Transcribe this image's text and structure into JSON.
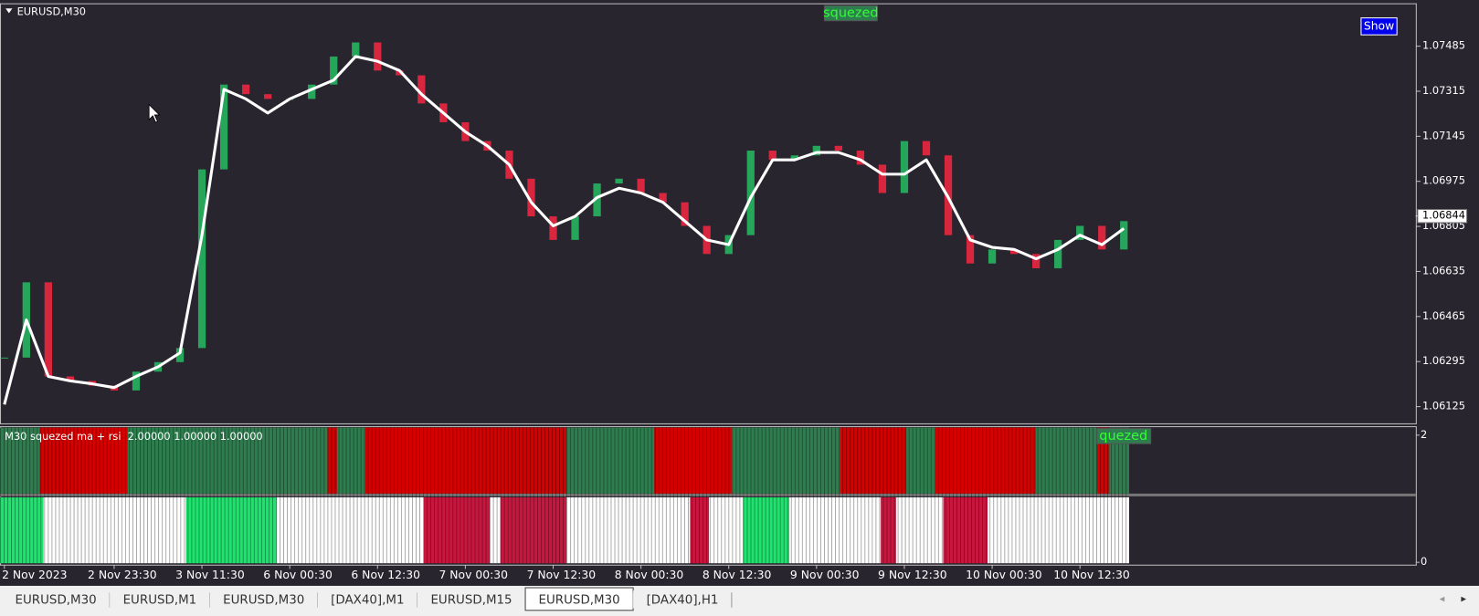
{
  "chart_data": [
    {
      "type": "candlestick",
      "title": "EURUSD,M30",
      "annotation": "squezed",
      "up_color": "#26a65b",
      "down_color": "#d7263d",
      "values": [
        1.0631,
        1.06594,
        1.06239,
        1.06222,
        1.06204,
        1.06186,
        1.06257,
        1.06293,
        1.06346,
        1.0702,
        1.0734,
        1.07304,
        1.07286,
        1.07286,
        1.0734,
        1.07446,
        1.07499,
        1.07393,
        1.07375,
        1.07269,
        1.07198,
        1.07127,
        1.07091,
        1.06985,
        1.06843,
        1.06754,
        1.06843,
        1.06967,
        1.06985,
        1.06931,
        1.06896,
        1.06807,
        1.06701,
        1.06772,
        1.07091,
        1.07056,
        1.07073,
        1.07109,
        1.07091,
        1.07038,
        1.06931,
        1.07127,
        1.07073,
        1.06772,
        1.06665,
        1.06718,
        1.06701,
        1.06647,
        1.06754,
        1.06807,
        1.06718,
        1.06825
      ],
      "overlay": {
        "color": "#ffffff",
        "values": [
          1.06133,
          1.06452,
          1.06239,
          1.06222,
          1.06211,
          1.06197,
          1.06239,
          1.06275,
          1.06328,
          1.06772,
          1.07322,
          1.07286,
          1.07233,
          1.07286,
          1.07322,
          1.07357,
          1.07446,
          1.07428,
          1.07393,
          1.07304,
          1.07233,
          1.07162,
          1.07109,
          1.07038,
          1.06896,
          1.06807,
          1.06843,
          1.06914,
          1.06949,
          1.06931,
          1.06896,
          1.06825,
          1.06754,
          1.06736,
          1.06914,
          1.07056,
          1.07056,
          1.07084,
          1.07084,
          1.07056,
          1.07002,
          1.07002,
          1.07056,
          1.06914,
          1.06754,
          1.06726,
          1.06718,
          1.06683,
          1.06718,
          1.06772,
          1.06736,
          1.06797
        ]
      },
      "last_price": 1.06844,
      "xlim": [
        -0.2,
        64.3
      ],
      "ylim": [
        1.0606,
        1.07645
      ],
      "yticks": [
        1.07485,
        1.07315,
        1.07145,
        1.06975,
        1.06805,
        1.06635,
        1.06465,
        1.06295,
        1.06125
      ]
    },
    {
      "type": "bands",
      "title": "M30 squezed ma + rsi  2.00000 1.00000 1.00000",
      "annotation": "quezed",
      "xlim": [
        -0.2,
        64.3
      ],
      "ylim": [
        0,
        2
      ],
      "yticks": [
        2,
        0
      ],
      "rows": [
        {
          "segments": [
            {
              "start": -0.2,
              "end": 1.61,
              "color": "#2e7d4f"
            },
            {
              "start": 1.61,
              "end": 5.61,
              "color": "#d50000"
            },
            {
              "start": 5.61,
              "end": 14.72,
              "color": "#2e7d4f"
            },
            {
              "start": 14.72,
              "end": 15.15,
              "color": "#d50000"
            },
            {
              "start": 15.15,
              "end": 16.45,
              "color": "#2e7d4f"
            },
            {
              "start": 16.45,
              "end": 25.61,
              "color": "#d50000"
            },
            {
              "start": 25.61,
              "end": 29.61,
              "color": "#2e7d4f"
            },
            {
              "start": 29.61,
              "end": 33.13,
              "color": "#d50000"
            },
            {
              "start": 33.13,
              "end": 38.08,
              "color": "#2e7d4f"
            },
            {
              "start": 38.08,
              "end": 41.09,
              "color": "#d50000"
            },
            {
              "start": 41.09,
              "end": 42.42,
              "color": "#2e7d4f"
            },
            {
              "start": 42.42,
              "end": 46.98,
              "color": "#d50000"
            },
            {
              "start": 46.98,
              "end": 49.78,
              "color": "#2e7d4f"
            },
            {
              "start": 49.78,
              "end": 50.34,
              "color": "#d50000"
            },
            {
              "start": 50.34,
              "end": 51.24,
              "color": "#2e7d4f"
            }
          ]
        },
        {
          "segments": [
            {
              "start": -0.2,
              "end": 1.78,
              "color": "#1ee36e"
            },
            {
              "start": 1.78,
              "end": 8.27,
              "color": "#ffffff"
            },
            {
              "start": 8.27,
              "end": 12.4,
              "color": "#1ee36e"
            },
            {
              "start": 12.4,
              "end": 19.11,
              "color": "#ffffff"
            },
            {
              "start": 19.11,
              "end": 22.12,
              "color": "#c8173f"
            },
            {
              "start": 22.12,
              "end": 22.6,
              "color": "#ffffff"
            },
            {
              "start": 22.6,
              "end": 25.61,
              "color": "#c8173f"
            },
            {
              "start": 25.61,
              "end": 31.24,
              "color": "#ffffff"
            },
            {
              "start": 31.24,
              "end": 32.1,
              "color": "#c8173f"
            },
            {
              "start": 32.1,
              "end": 33.65,
              "color": "#ffffff"
            },
            {
              "start": 33.65,
              "end": 35.76,
              "color": "#1ee36e"
            },
            {
              "start": 35.76,
              "end": 39.93,
              "color": "#ffffff"
            },
            {
              "start": 39.93,
              "end": 40.62,
              "color": "#c8173f"
            },
            {
              "start": 40.62,
              "end": 42.77,
              "color": "#ffffff"
            },
            {
              "start": 42.77,
              "end": 44.79,
              "color": "#c8173f"
            },
            {
              "start": 44.79,
              "end": 51.24,
              "color": "#ffffff"
            }
          ]
        }
      ],
      "xticks": [
        {
          "value": 0,
          "label": "2 Nov 2023"
        },
        {
          "value": 5,
          "label": "2 Nov 23:30"
        },
        {
          "value": 9,
          "label": "3 Nov 11:30"
        },
        {
          "value": 13,
          "label": "6 Nov 00:30"
        },
        {
          "value": 17,
          "label": "6 Nov 12:30"
        },
        {
          "value": 21,
          "label": "7 Nov 00:30"
        },
        {
          "value": 25,
          "label": "7 Nov 12:30"
        },
        {
          "value": 29,
          "label": "8 Nov 00:30"
        },
        {
          "value": 33,
          "label": "8 Nov 12:30"
        },
        {
          "value": 37,
          "label": "9 Nov 00:30"
        },
        {
          "value": 41,
          "label": "9 Nov 12:30"
        },
        {
          "value": 45,
          "label": "10 Nov 00:30"
        },
        {
          "value": 49,
          "label": "10 Nov 12:30"
        }
      ]
    }
  ],
  "ui": {
    "button": "Show"
  },
  "tabs": [
    {
      "label": "EURUSD,M30",
      "active": false
    },
    {
      "label": "EURUSD,M1",
      "active": false
    },
    {
      "label": "EURUSD,M30",
      "active": false
    },
    {
      "label": "[DAX40],M1",
      "active": false
    },
    {
      "label": "EURUSD,M15",
      "active": false
    },
    {
      "label": "EURUSD,M30",
      "active": true
    },
    {
      "label": "[DAX40],H1",
      "active": false
    }
  ]
}
